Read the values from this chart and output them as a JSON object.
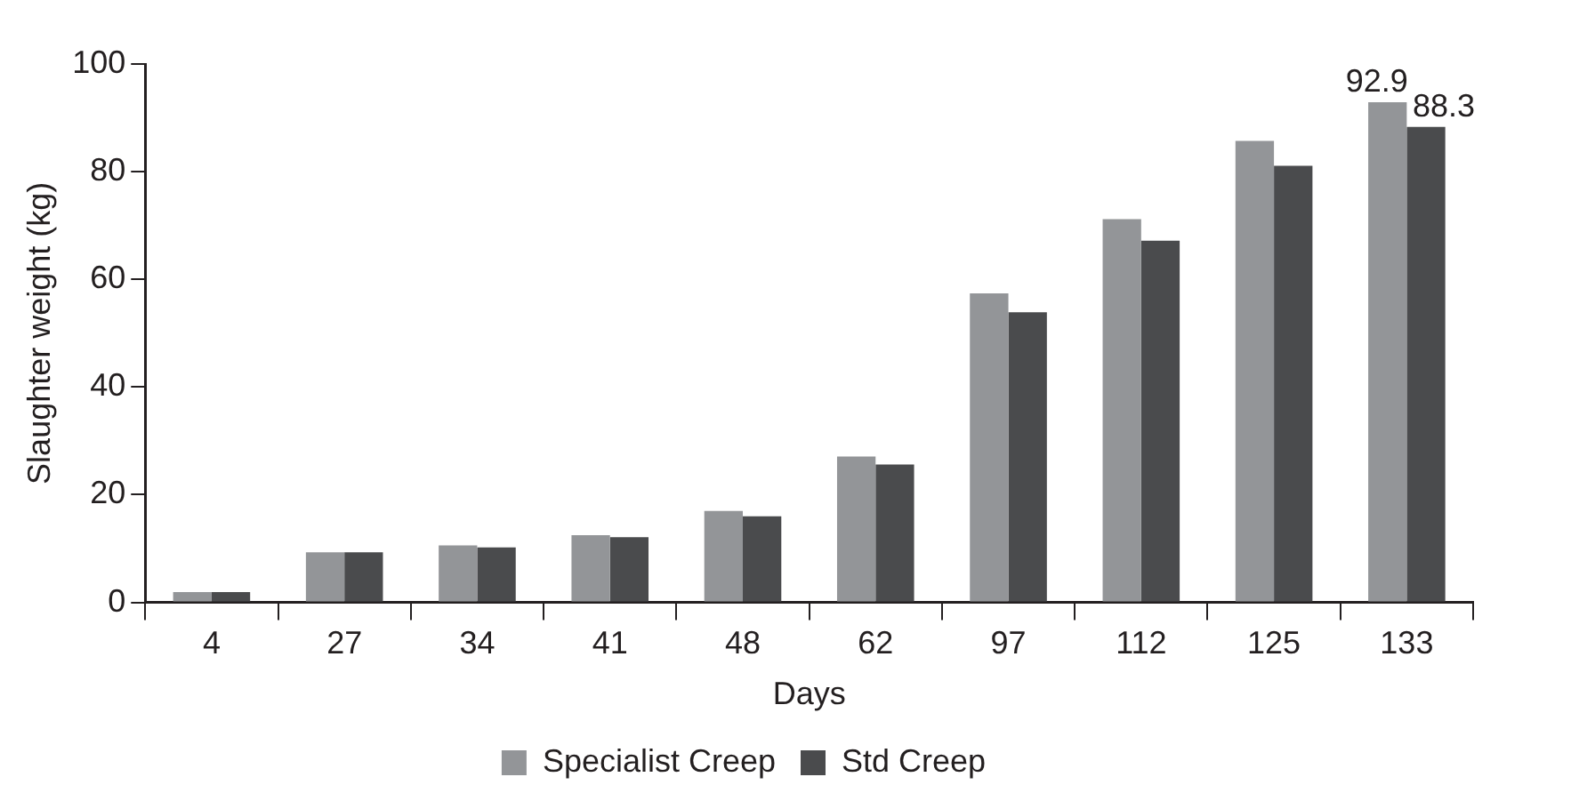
{
  "chart_data": {
    "type": "bar",
    "xlabel": "Days",
    "ylabel": "Slaughter weight (kg)",
    "categories": [
      "4",
      "27",
      "34",
      "41",
      "48",
      "62",
      "97",
      "112",
      "125",
      "133"
    ],
    "series": [
      {
        "name": "Specialist Creep",
        "color": "#939598",
        "values": [
          1.9,
          9.3,
          10.6,
          12.5,
          17.0,
          27.1,
          57.4,
          71.2,
          85.7,
          92.9
        ],
        "value_labels": [
          null,
          null,
          null,
          null,
          null,
          null,
          null,
          null,
          null,
          "92.9"
        ]
      },
      {
        "name": "Std Creep",
        "color": "#4a4b4d",
        "values": [
          1.9,
          9.3,
          10.2,
          12.1,
          16.0,
          25.6,
          53.9,
          67.2,
          81.1,
          88.3
        ],
        "value_labels": [
          null,
          null,
          null,
          null,
          null,
          null,
          null,
          null,
          null,
          "88.3"
        ]
      }
    ],
    "ylim": [
      0,
      100
    ],
    "yticks": [
      0,
      20,
      40,
      60,
      80,
      100
    ],
    "grid": false,
    "legend": "bottom"
  }
}
